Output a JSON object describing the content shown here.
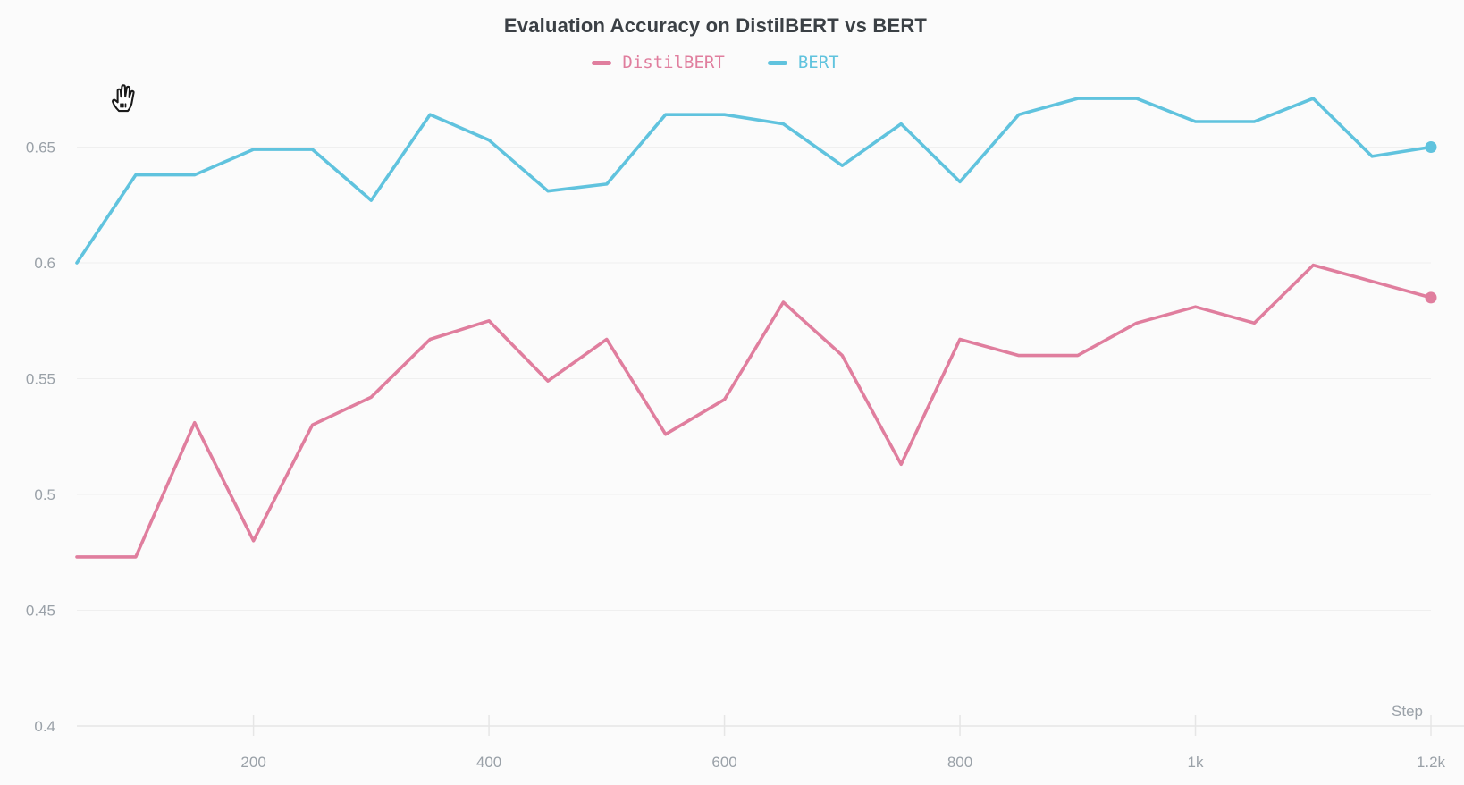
{
  "chart": {
    "title": "Evaluation Accuracy on DistilBERT vs BERT",
    "x_axis_title": "Step",
    "legend": {
      "items": [
        {
          "label": "DistilBERT",
          "color": "#e07e9e"
        },
        {
          "label": "BERT",
          "color": "#60c3de"
        }
      ]
    }
  },
  "chart_data": {
    "type": "line",
    "title": "Evaluation Accuracy on DistilBERT vs BERT",
    "xlabel": "Step",
    "ylabel": "",
    "x": [
      50,
      100,
      150,
      200,
      250,
      300,
      350,
      400,
      450,
      500,
      550,
      600,
      650,
      700,
      750,
      800,
      850,
      900,
      950,
      1000,
      1050,
      1100,
      1150,
      1200
    ],
    "series": [
      {
        "name": "DistilBERT",
        "color": "#e07e9e",
        "values": [
          0.473,
          0.473,
          0.531,
          0.48,
          0.53,
          0.542,
          0.567,
          0.575,
          0.549,
          0.567,
          0.526,
          0.541,
          0.583,
          0.56,
          0.513,
          0.567,
          0.56,
          0.56,
          0.574,
          0.581,
          0.574,
          0.599,
          0.592,
          0.585
        ]
      },
      {
        "name": "BERT",
        "color": "#60c3de",
        "values": [
          0.6,
          0.638,
          0.638,
          0.649,
          0.649,
          0.627,
          0.664,
          0.653,
          0.631,
          0.634,
          0.664,
          0.664,
          0.66,
          0.642,
          0.66,
          0.635,
          0.664,
          0.671,
          0.671,
          0.661,
          0.661,
          0.671,
          0.646,
          0.65
        ]
      }
    ],
    "xlim": [
      50,
      1200
    ],
    "ylim": [
      0.4,
      0.68
    ],
    "x_ticks": [
      {
        "value": 200,
        "label": "200"
      },
      {
        "value": 400,
        "label": "400"
      },
      {
        "value": 600,
        "label": "600"
      },
      {
        "value": 800,
        "label": "800"
      },
      {
        "value": 1000,
        "label": "1k"
      },
      {
        "value": 1200,
        "label": "1.2k"
      }
    ],
    "y_ticks": [
      {
        "value": 0.4,
        "label": "0.4"
      },
      {
        "value": 0.45,
        "label": "0.45"
      },
      {
        "value": 0.5,
        "label": "0.5"
      },
      {
        "value": 0.55,
        "label": "0.55"
      },
      {
        "value": 0.6,
        "label": "0.6"
      },
      {
        "value": 0.65,
        "label": "0.65"
      }
    ],
    "grid": true,
    "legend_position": "top",
    "end_markers": true
  },
  "colors": {
    "background": "#fbfbfb",
    "title_text": "#3b4045",
    "axis_text": "#9aa1a8",
    "gridline": "#efefef",
    "axis_line": "#e6e6e6"
  },
  "cursor": {
    "icon": "open-hand-grab"
  }
}
